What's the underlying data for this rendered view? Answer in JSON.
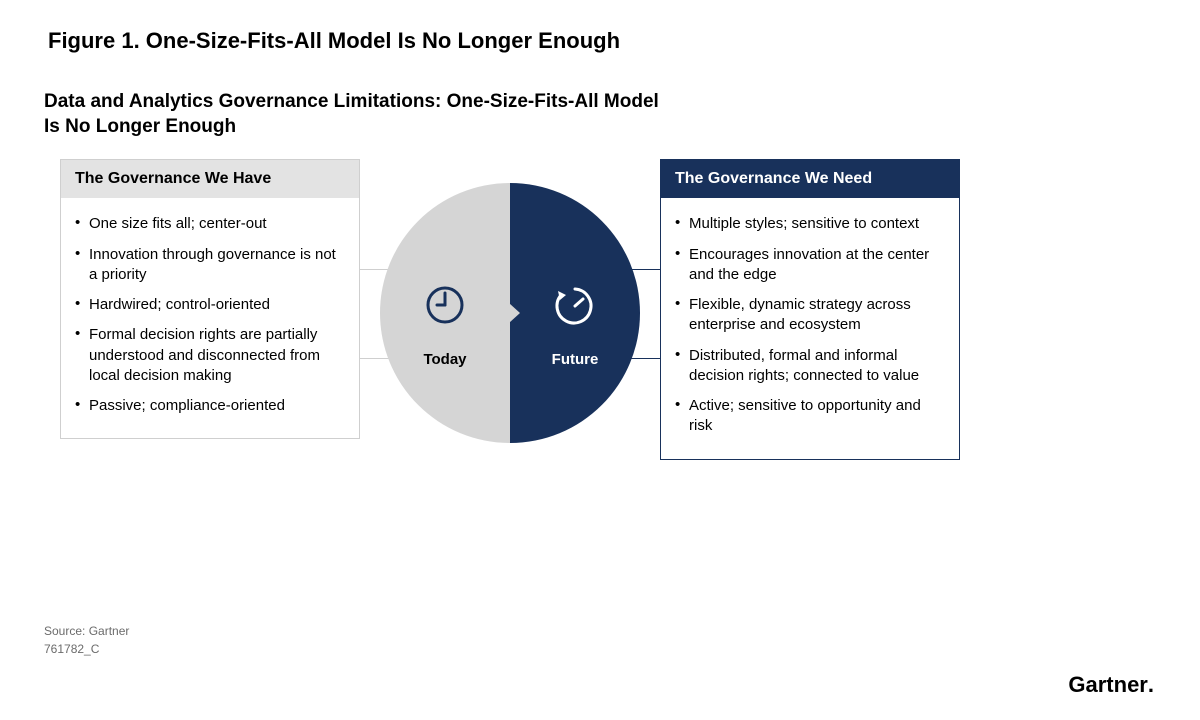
{
  "figure_title": "Figure 1. One-Size-Fits-All Model Is No Longer Enough",
  "subtitle_line1": "Data and Analytics Governance Limitations: One-Size-Fits-All Model",
  "subtitle_line2": "Is No Longer Enough",
  "colors": {
    "left_fill": "#d5d5d5",
    "right_fill": "#18315b",
    "panel_border_left": "#cfcfcf",
    "panel_border_right": "#18315b",
    "header_bg_left": "#e3e3e3",
    "header_bg_right": "#18315b",
    "header_text_right": "#ffffff",
    "icon_left": "#18315b",
    "icon_right": "#ffffff",
    "text": "#000000",
    "muted": "#6b6b6b"
  },
  "left_panel": {
    "header": "The Governance We Have",
    "items": [
      "One size fits all; center-out",
      "Innovation through governance is not a priority",
      "Hardwired; control-oriented",
      "Formal decision rights are partially understood and disconnected from local decision making",
      "Passive; compliance-oriented"
    ]
  },
  "right_panel": {
    "header": "The Governance We Need",
    "items": [
      "Multiple styles; sensitive to context",
      "Encourages innovation at the center and the edge",
      "Flexible, dynamic strategy across enterprise and ecosystem",
      "Distributed, formal and informal decision rights; connected to value",
      "Active; sensitive to opportunity and risk"
    ]
  },
  "circle": {
    "left_label": "Today",
    "right_label": "Future",
    "left_icon": "clock-icon",
    "right_icon": "timer-icon"
  },
  "source_line1": "Source: Gartner",
  "source_line2": "761782_C",
  "brand": "Gartner"
}
